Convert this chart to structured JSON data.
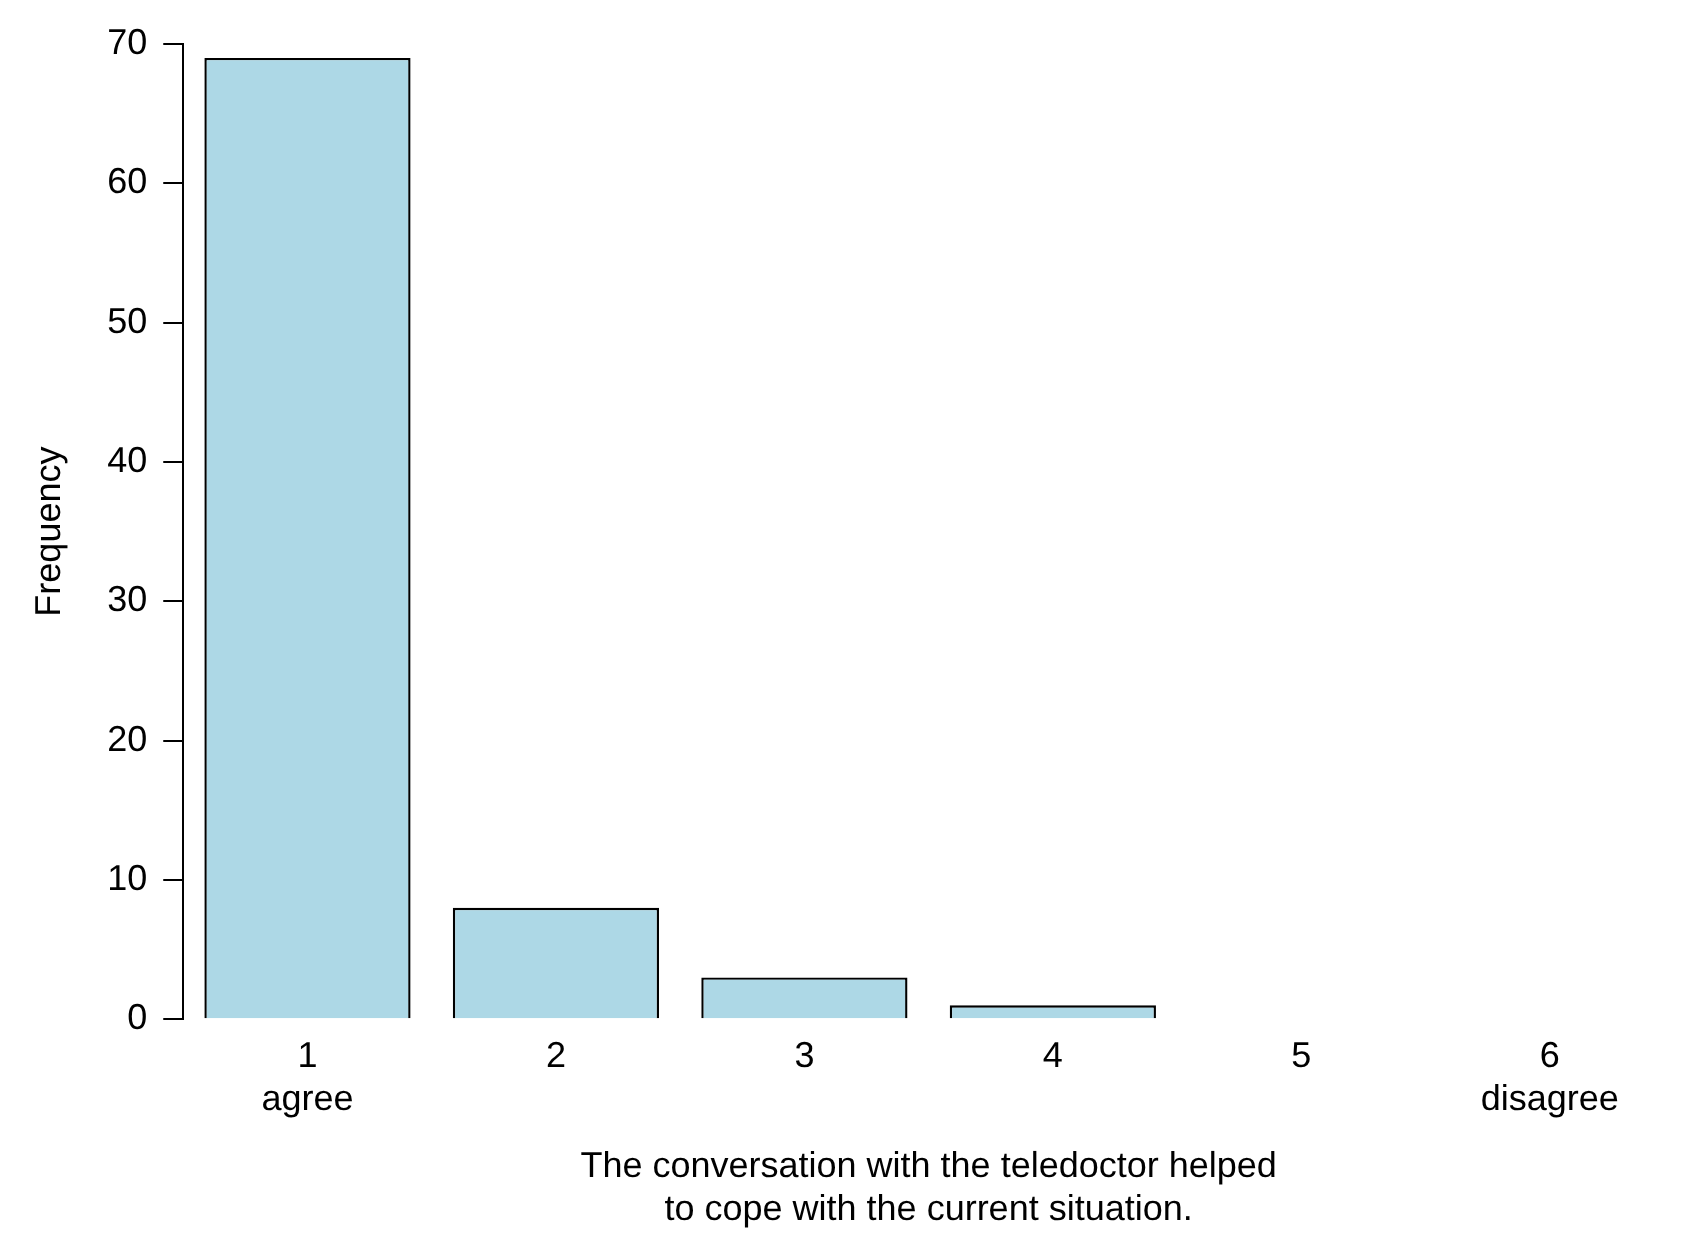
{
  "chart_data": {
    "type": "bar",
    "xlabel": "The conversation with the teledoctor helped\nto cope with the current situation.",
    "ylabel": "Frequency",
    "categories": [
      "1\nagree",
      "2",
      "3",
      "4",
      "5",
      "6\ndisagree"
    ],
    "values": [
      69,
      8,
      3,
      1,
      0,
      0
    ],
    "color": "#add8e6",
    "ylim": [
      0,
      70
    ],
    "yticks": [
      0,
      10,
      20,
      30,
      40,
      50,
      60,
      70
    ],
    "grid": false,
    "legend": false
  }
}
